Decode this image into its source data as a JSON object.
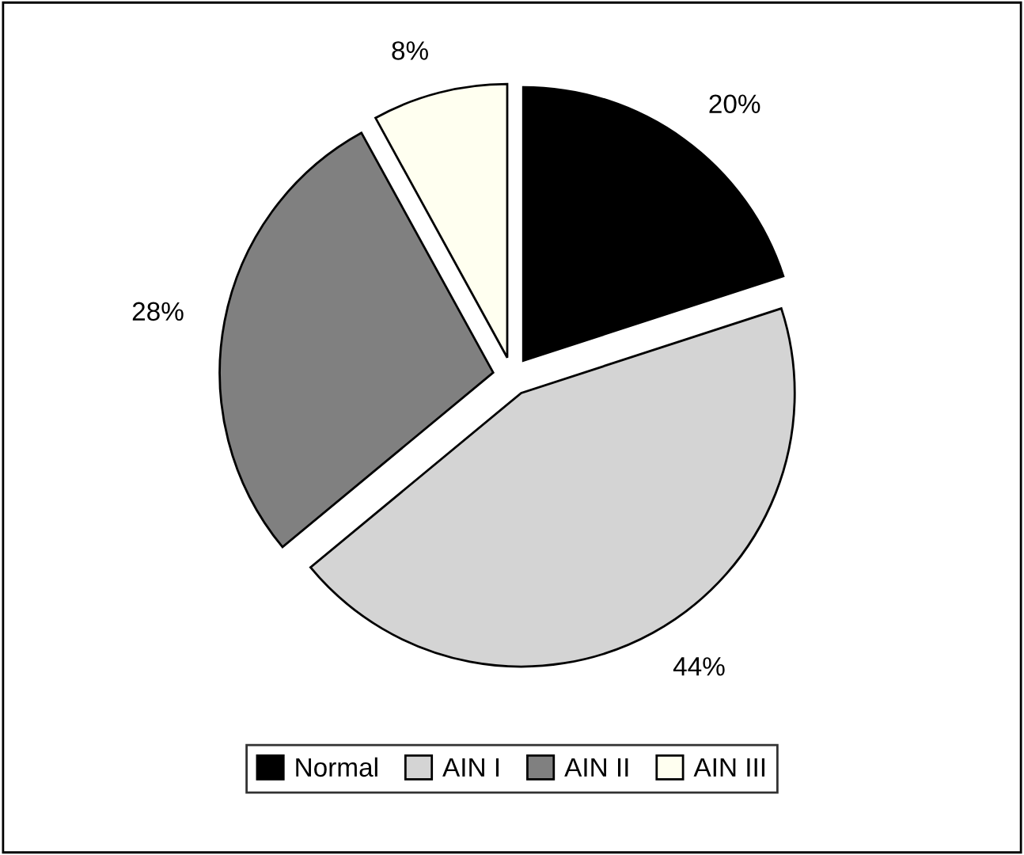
{
  "chart_data": {
    "type": "pie",
    "categories": [
      "Normal",
      "AIN I",
      "AIN II",
      "AIN III"
    ],
    "values": [
      20,
      44,
      28,
      8
    ],
    "value_labels": [
      "20%",
      "44%",
      "28%",
      "8%"
    ],
    "colors": [
      "#000000",
      "#d4d4d4",
      "#808080",
      "#fffff0"
    ],
    "legend": "bottom"
  }
}
